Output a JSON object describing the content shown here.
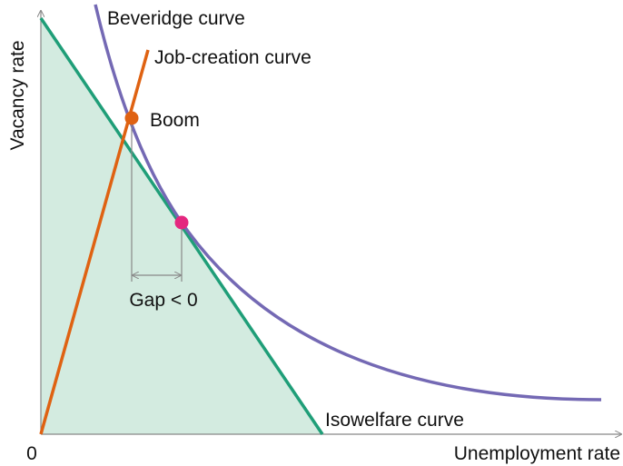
{
  "axes": {
    "x_label": "Unemployment rate",
    "y_label": "Vacancy rate",
    "origin": "0"
  },
  "curves": {
    "beveridge": "Beveridge curve",
    "job_creation": "Job-creation curve",
    "isowelfare": "Isowelfare curve"
  },
  "points": {
    "boom": "Boom"
  },
  "gap": "Gap < 0"
}
